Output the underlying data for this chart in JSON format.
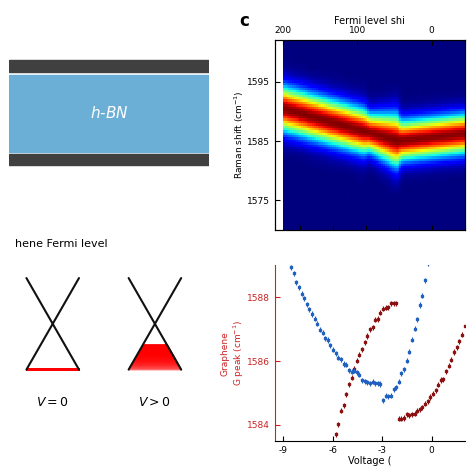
{
  "title_c": "c",
  "fermi_label": "Fermi level shi",
  "fermi_ticks_labels": [
    "200",
    "100",
    "0"
  ],
  "fermi_ticks_volts": [
    -9.0,
    -4.5,
    0.0
  ],
  "raman_ylabel": "Raman shift (cm$^{-1}$)",
  "raman_yticks": [
    1575,
    1585,
    1595
  ],
  "raman_ylim": [
    1570,
    1602
  ],
  "gpeak_ylabel": "Graphene\nG peak (cm$^{-1}$)",
  "gpeak_yticks": [
    1584,
    1586,
    1588
  ],
  "gpeak_ylim": [
    1583.5,
    1589.0
  ],
  "voltage_xlabel": "Voltage (",
  "voltage_xticks": [
    -9,
    -6,
    -3,
    0
  ],
  "voltage_xlim": [
    -9.5,
    2.0
  ],
  "hbn_color": "#6baed6",
  "hbn_label": "h-BN",
  "graphene_label": "hene Fermi level",
  "v0_label": "V = 0",
  "vgt0_label": "V > 0",
  "bg_color": "#ffffff",
  "blue_color": "#2060c0",
  "red_color": "#8b1010",
  "cone_line_color": "#111111",
  "dark_bar_color": "#404040"
}
